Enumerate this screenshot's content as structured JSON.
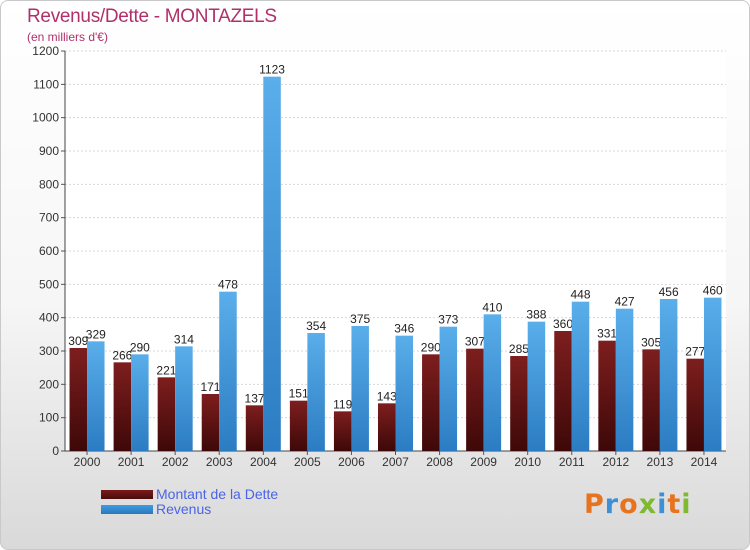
{
  "header": {
    "title": "Revenus/Dette - MONTAZELS",
    "subtitle": "(en milliers d'€)"
  },
  "legend": {
    "items": [
      {
        "label": "Montant de la Dette",
        "color": "#7a1a1a"
      },
      {
        "label": "Revenus",
        "color": "#3f9be0"
      }
    ]
  },
  "logo": {
    "text": "Proxiti",
    "colors": [
      "#e8731f",
      "#3d8fd6",
      "#e8731f",
      "#7fb930",
      "#3d8fd6",
      "#e8731f",
      "#7fb930"
    ]
  },
  "chart_data": {
    "type": "bar",
    "title": "Revenus/Dette - MONTAZELS",
    "subtitle": "(en milliers d'€)",
    "categories": [
      "2000",
      "2001",
      "2002",
      "2003",
      "2004",
      "2005",
      "2006",
      "2007",
      "2008",
      "2009",
      "2010",
      "2011",
      "2012",
      "2013",
      "2014"
    ],
    "series": [
      {
        "name": "Montant de la Dette",
        "color": "#7a1a1a",
        "values": [
          309,
          266,
          221,
          171,
          137,
          151,
          119,
          143,
          290,
          307,
          285,
          360,
          331,
          305,
          277
        ]
      },
      {
        "name": "Revenus",
        "color": "#3f9be0",
        "values": [
          329,
          290,
          314,
          478,
          1123,
          354,
          375,
          346,
          373,
          410,
          388,
          448,
          427,
          456,
          460
        ]
      }
    ],
    "ylim": [
      0,
      1200
    ],
    "yticks": [
      0,
      100,
      200,
      300,
      400,
      500,
      600,
      700,
      800,
      900,
      1000,
      1100,
      1200
    ],
    "grid": true,
    "legend_position": "bottom-left"
  }
}
